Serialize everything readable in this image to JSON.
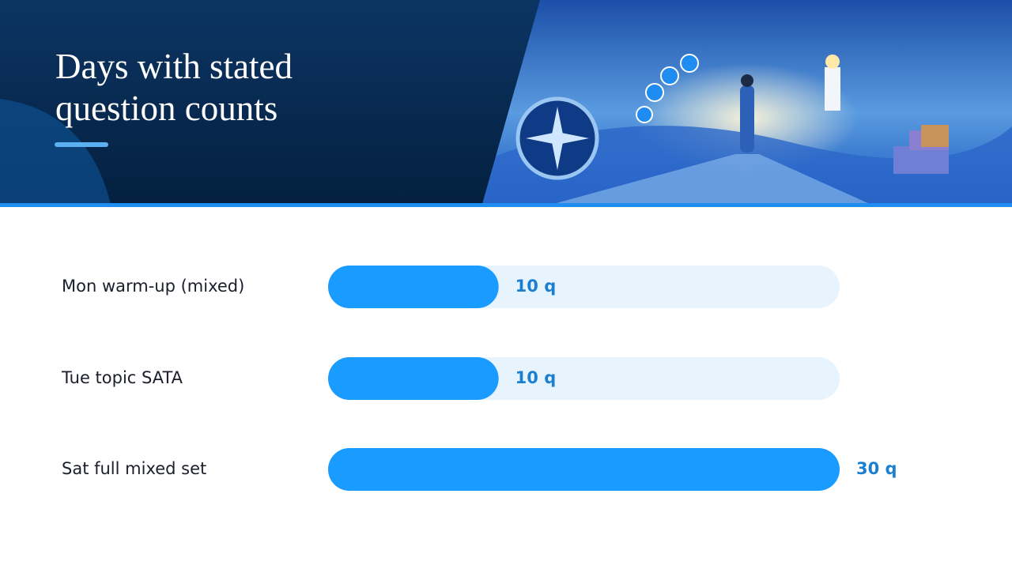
{
  "chart_data": {
    "type": "bar",
    "orientation": "horizontal",
    "title": "Days with stated question counts",
    "categories": [
      "Mon warm-up (mixed)",
      "Tue topic SATA",
      "Sat full mixed set"
    ],
    "values": [
      10,
      10,
      30
    ],
    "value_labels": [
      "10 q",
      "10 q",
      "30 q"
    ],
    "xlim": [
      0,
      30
    ],
    "color": "#1a9bff",
    "track_color": "#e8f4fd",
    "label_color": "#1a7fd0"
  }
}
